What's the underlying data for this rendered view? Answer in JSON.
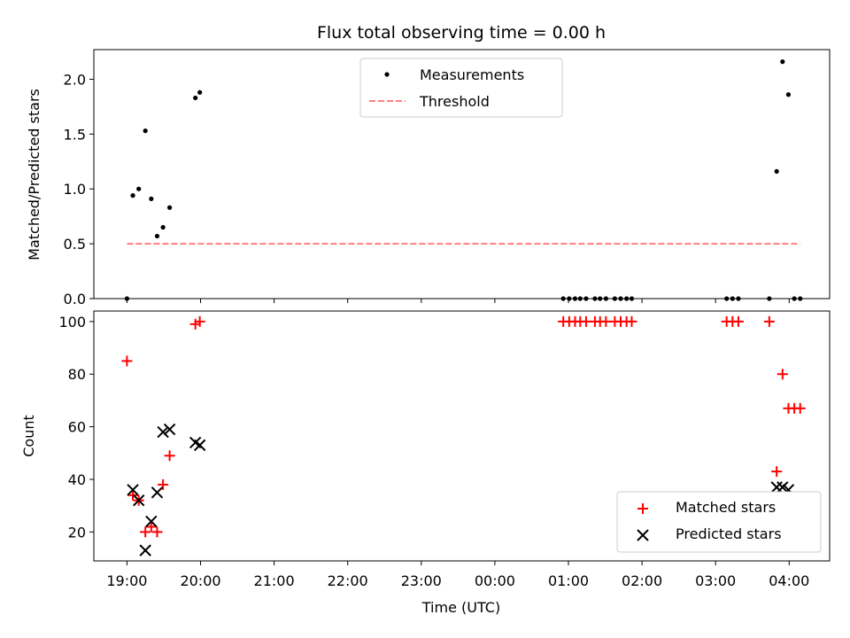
{
  "title": "Flux total observing time = 0.00 h",
  "chart_data": [
    {
      "type": "scatter",
      "panel": "top",
      "ylabel": "Matched/Predicted stars",
      "xlabel": "",
      "x_unit": "hours after 19:00 UTC",
      "xlim": [
        -0.45,
        9.55
      ],
      "ylim": [
        0,
        2.27
      ],
      "yticks": [
        "0.0",
        "0.5",
        "1.0",
        "1.5",
        "2.0"
      ],
      "ytick_values": [
        0,
        0.5,
        1.0,
        1.5,
        2.0
      ],
      "legend_position": "upper center",
      "legend": [
        "Measurements",
        "Threshold"
      ],
      "series": [
        {
          "name": "Measurements",
          "marker": "dot",
          "color": "#000000",
          "points": [
            [
              0.0,
              0.0
            ],
            [
              0.08,
              0.94
            ],
            [
              0.16,
              1.0
            ],
            [
              0.25,
              1.53
            ],
            [
              0.33,
              0.91
            ],
            [
              0.41,
              0.57
            ],
            [
              0.49,
              0.65
            ],
            [
              0.58,
              0.83
            ],
            [
              0.93,
              1.83
            ],
            [
              0.99,
              1.88
            ],
            [
              5.93,
              0.0
            ],
            [
              6.01,
              0.0
            ],
            [
              6.09,
              0.0
            ],
            [
              6.16,
              0.0
            ],
            [
              6.24,
              0.0
            ],
            [
              6.36,
              0.0
            ],
            [
              6.43,
              0.0
            ],
            [
              6.51,
              0.0
            ],
            [
              6.63,
              0.0
            ],
            [
              6.71,
              0.0
            ],
            [
              6.79,
              0.0
            ],
            [
              6.86,
              0.0
            ],
            [
              8.15,
              0.0
            ],
            [
              8.23,
              0.0
            ],
            [
              8.31,
              0.0
            ],
            [
              8.73,
              0.0
            ],
            [
              8.83,
              1.16
            ],
            [
              8.91,
              2.16
            ],
            [
              8.99,
              1.86
            ],
            [
              9.07,
              0.0
            ],
            [
              9.15,
              0.0
            ]
          ]
        },
        {
          "name": "Threshold",
          "style": "dashed",
          "color": "#ff7f7f",
          "x": [
            0.0,
            9.15
          ],
          "y": [
            0.5,
            0.5
          ]
        }
      ]
    },
    {
      "type": "scatter",
      "panel": "bottom",
      "ylabel": "Count",
      "xlabel": "Time (UTC)",
      "x_unit": "hours after 19:00 UTC",
      "xlim": [
        -0.45,
        9.55
      ],
      "ylim": [
        9,
        104
      ],
      "yticks": [
        "20",
        "40",
        "60",
        "80",
        "100"
      ],
      "ytick_values": [
        20,
        40,
        60,
        80,
        100
      ],
      "xticks": [
        "19:00",
        "20:00",
        "21:00",
        "22:00",
        "23:00",
        "00:00",
        "01:00",
        "02:00",
        "03:00",
        "04:00"
      ],
      "xtick_values": [
        0,
        1,
        2,
        3,
        4,
        5,
        6,
        7,
        8,
        9
      ],
      "legend_position": "lower right",
      "legend": [
        "Matched stars",
        "Predicted stars"
      ],
      "series": [
        {
          "name": "Matched stars",
          "marker": "plus",
          "color": "#ff0000",
          "points": [
            [
              0.0,
              85
            ],
            [
              0.08,
              34
            ],
            [
              0.16,
              32
            ],
            [
              0.25,
              20
            ],
            [
              0.33,
              22
            ],
            [
              0.41,
              20
            ],
            [
              0.49,
              38
            ],
            [
              0.58,
              49
            ],
            [
              0.93,
              99
            ],
            [
              0.99,
              100
            ],
            [
              5.93,
              100
            ],
            [
              6.01,
              100
            ],
            [
              6.09,
              100
            ],
            [
              6.16,
              100
            ],
            [
              6.24,
              100
            ],
            [
              6.36,
              100
            ],
            [
              6.43,
              100
            ],
            [
              6.51,
              100
            ],
            [
              6.63,
              100
            ],
            [
              6.71,
              100
            ],
            [
              6.79,
              100
            ],
            [
              6.86,
              100
            ],
            [
              8.15,
              100
            ],
            [
              8.23,
              100
            ],
            [
              8.31,
              100
            ],
            [
              8.73,
              100
            ],
            [
              8.83,
              43
            ],
            [
              8.91,
              80
            ],
            [
              8.99,
              67
            ],
            [
              9.07,
              67
            ],
            [
              9.15,
              67
            ]
          ]
        },
        {
          "name": "Predicted stars",
          "marker": "x",
          "color": "#000000",
          "points": [
            [
              0.08,
              36
            ],
            [
              0.16,
              32
            ],
            [
              0.25,
              13
            ],
            [
              0.33,
              24
            ],
            [
              0.41,
              35
            ],
            [
              0.49,
              58
            ],
            [
              0.58,
              59
            ],
            [
              0.93,
              54
            ],
            [
              0.99,
              53
            ],
            [
              8.83,
              37
            ],
            [
              8.91,
              37
            ],
            [
              8.99,
              36
            ]
          ]
        }
      ]
    }
  ]
}
